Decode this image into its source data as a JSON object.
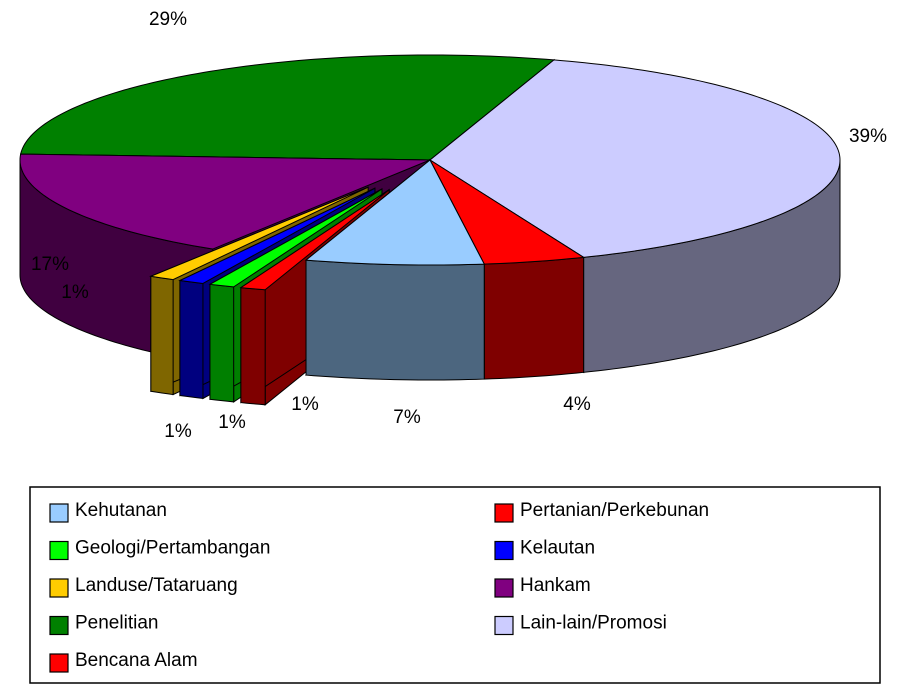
{
  "chart_data": {
    "type": "pie",
    "categories": [
      "Kehutanan",
      "Pertanian/Perkebunan",
      "Lain-lain/Promosi",
      "Penelitian",
      "Hankam",
      "Landuse/Tataruang",
      "Kelautan",
      "Geologi/Pertambangan",
      "Bencana Alam"
    ],
    "values": [
      7,
      4,
      39,
      29,
      17,
      1,
      1,
      1,
      1
    ],
    "value_labels": [
      "7%",
      "4%",
      "39%",
      "29%",
      "17%",
      "1%",
      "1%",
      "1%",
      "1%"
    ],
    "colors": [
      "#99ccff",
      "#ff0000",
      "#ccccff",
      "#008000",
      "#800080",
      "#ffcc00",
      "#0000ff",
      "#00ff00",
      "#ff0000"
    ],
    "legend": true
  }
}
